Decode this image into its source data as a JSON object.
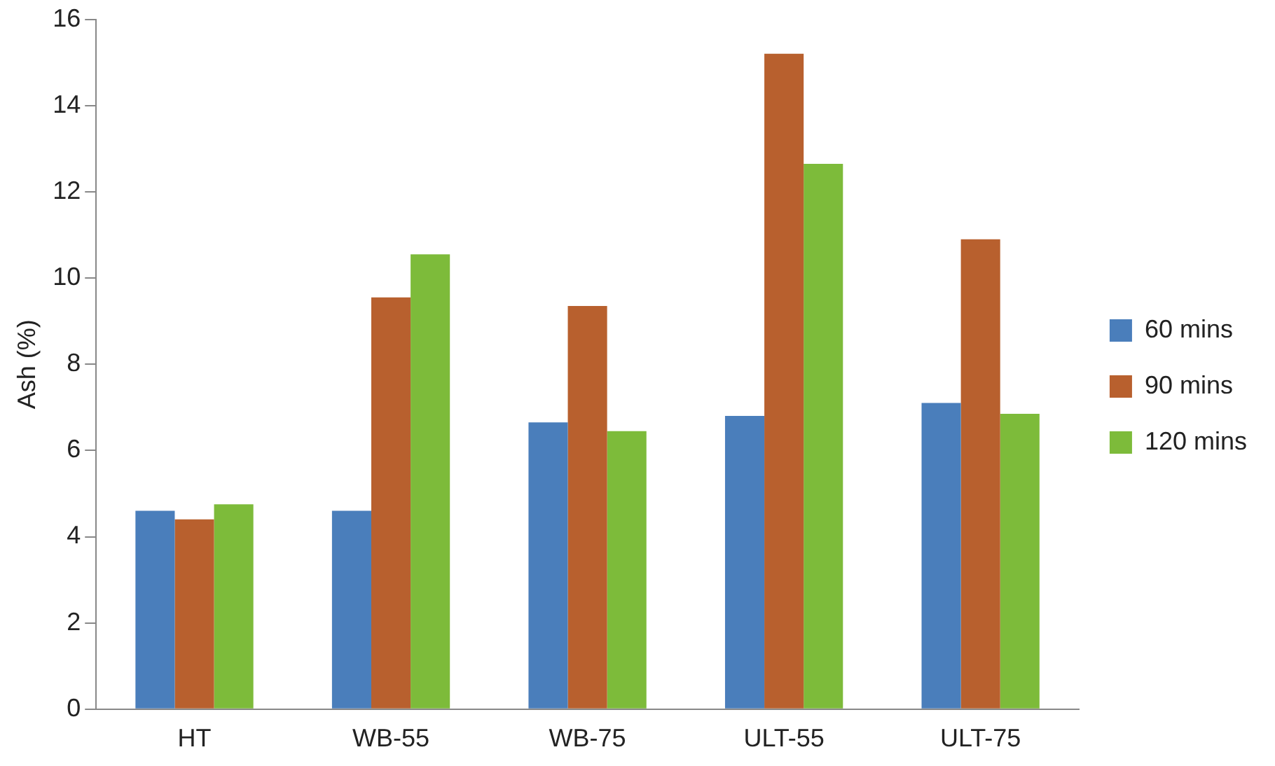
{
  "chart_data": {
    "type": "bar",
    "ylabel": "Ash (%)",
    "categories": [
      "HT",
      "WB-55",
      "WB-75",
      "ULT-55",
      "ULT-75"
    ],
    "series": [
      {
        "name": "60 mins",
        "color": "#4a7ebb",
        "values": [
          4.6,
          4.6,
          6.65,
          6.8,
          7.1
        ]
      },
      {
        "name": "90 mins",
        "color": "#b8602e",
        "values": [
          4.4,
          9.55,
          9.35,
          15.2,
          10.9
        ]
      },
      {
        "name": "120 mins",
        "color": "#7dbb3a",
        "values": [
          4.75,
          10.55,
          6.45,
          12.65,
          6.85
        ]
      }
    ],
    "ylim": [
      0,
      16
    ],
    "yticks": [
      0,
      2,
      4,
      6,
      8,
      10,
      12,
      14,
      16
    ],
    "grid": false,
    "legend": "right"
  }
}
